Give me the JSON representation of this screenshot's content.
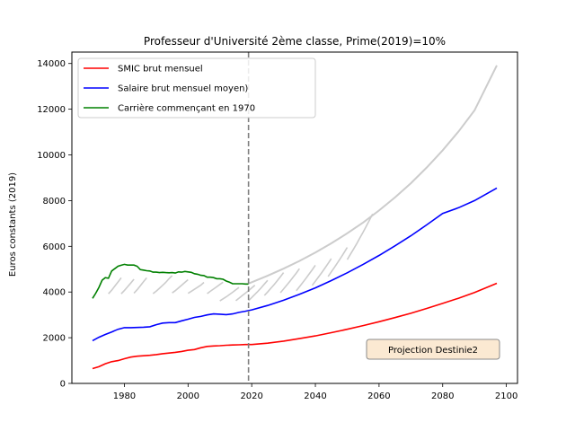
{
  "chart_data": {
    "type": "line",
    "title": "Professeur d'Université 2ème classe, Prime(2019)=10%",
    "xlabel": "",
    "ylabel": "Euros constants (2019)",
    "xlim": [
      1963.5,
      2103.5
    ],
    "ylim": [
      0,
      14500
    ],
    "xticks": [
      1980,
      2000,
      2020,
      2040,
      2060,
      2080,
      2100
    ],
    "yticks": [
      0,
      2000,
      4000,
      6000,
      8000,
      10000,
      12000,
      14000
    ],
    "vline": {
      "x": 2019,
      "color": "#808080",
      "style": "dashed"
    },
    "annotation": "Projection Destinie2",
    "legend_position": "top-left",
    "colors": {
      "smic": "#ff0000",
      "salaire": "#0000ff",
      "carriere": "#008000",
      "projection": "#cccccc"
    },
    "series": [
      {
        "name": "SMIC brut mensuel",
        "color": "#ff0000",
        "points": [
          [
            1970,
            650
          ],
          [
            1972,
            730
          ],
          [
            1974,
            860
          ],
          [
            1976,
            950
          ],
          [
            1978,
            1000
          ],
          [
            1980,
            1080
          ],
          [
            1982,
            1150
          ],
          [
            1984,
            1190
          ],
          [
            1986,
            1210
          ],
          [
            1988,
            1230
          ],
          [
            1990,
            1260
          ],
          [
            1992,
            1300
          ],
          [
            1994,
            1330
          ],
          [
            1996,
            1360
          ],
          [
            1998,
            1400
          ],
          [
            2000,
            1450
          ],
          [
            2002,
            1480
          ],
          [
            2004,
            1560
          ],
          [
            2006,
            1620
          ],
          [
            2008,
            1640
          ],
          [
            2010,
            1650
          ],
          [
            2012,
            1670
          ],
          [
            2014,
            1680
          ],
          [
            2016,
            1690
          ],
          [
            2018,
            1700
          ],
          [
            2020,
            1700
          ],
          [
            2025,
            1760
          ],
          [
            2030,
            1850
          ],
          [
            2035,
            1960
          ],
          [
            2040,
            2080
          ],
          [
            2045,
            2220
          ],
          [
            2050,
            2370
          ],
          [
            2055,
            2530
          ],
          [
            2060,
            2700
          ],
          [
            2065,
            2880
          ],
          [
            2070,
            3070
          ],
          [
            2075,
            3280
          ],
          [
            2080,
            3500
          ],
          [
            2085,
            3730
          ],
          [
            2090,
            3980
          ],
          [
            2097,
            4380
          ]
        ]
      },
      {
        "name": "Salaire brut mensuel moyen)",
        "color": "#0000ff",
        "points": [
          [
            1970,
            1870
          ],
          [
            1972,
            2020
          ],
          [
            1974,
            2140
          ],
          [
            1976,
            2250
          ],
          [
            1978,
            2370
          ],
          [
            1980,
            2440
          ],
          [
            1982,
            2440
          ],
          [
            1984,
            2450
          ],
          [
            1986,
            2460
          ],
          [
            1988,
            2480
          ],
          [
            1990,
            2570
          ],
          [
            1992,
            2640
          ],
          [
            1994,
            2660
          ],
          [
            1996,
            2660
          ],
          [
            1998,
            2740
          ],
          [
            2000,
            2810
          ],
          [
            2002,
            2890
          ],
          [
            2004,
            2930
          ],
          [
            2006,
            3000
          ],
          [
            2008,
            3040
          ],
          [
            2010,
            3030
          ],
          [
            2012,
            3010
          ],
          [
            2014,
            3040
          ],
          [
            2016,
            3110
          ],
          [
            2018,
            3160
          ],
          [
            2020,
            3220
          ],
          [
            2025,
            3410
          ],
          [
            2030,
            3640
          ],
          [
            2035,
            3900
          ],
          [
            2040,
            4180
          ],
          [
            2045,
            4500
          ],
          [
            2050,
            4840
          ],
          [
            2055,
            5210
          ],
          [
            2060,
            5600
          ],
          [
            2065,
            6020
          ],
          [
            2070,
            6460
          ],
          [
            2075,
            6940
          ],
          [
            2080,
            7440
          ],
          [
            2085,
            7690
          ],
          [
            2090,
            8000
          ],
          [
            2097,
            8550
          ]
        ]
      },
      {
        "name": "Carrière commençant en 1970",
        "color": "#008000",
        "points": [
          [
            1970,
            3720
          ],
          [
            1971,
            3950
          ],
          [
            1972,
            4200
          ],
          [
            1973,
            4520
          ],
          [
            1974,
            4630
          ],
          [
            1975,
            4600
          ],
          [
            1976,
            4920
          ],
          [
            1977,
            5020
          ],
          [
            1978,
            5130
          ],
          [
            1979,
            5170
          ],
          [
            1980,
            5210
          ],
          [
            1981,
            5180
          ],
          [
            1982,
            5180
          ],
          [
            1983,
            5180
          ],
          [
            1984,
            5130
          ],
          [
            1985,
            4980
          ],
          [
            1986,
            4960
          ],
          [
            1987,
            4930
          ],
          [
            1988,
            4920
          ],
          [
            1989,
            4870
          ],
          [
            1990,
            4870
          ],
          [
            1991,
            4850
          ],
          [
            1992,
            4860
          ],
          [
            1993,
            4850
          ],
          [
            1994,
            4840
          ],
          [
            1995,
            4850
          ],
          [
            1996,
            4830
          ],
          [
            1997,
            4880
          ],
          [
            1998,
            4870
          ],
          [
            1999,
            4900
          ],
          [
            2000,
            4880
          ],
          [
            2001,
            4860
          ],
          [
            2002,
            4800
          ],
          [
            2003,
            4780
          ],
          [
            2004,
            4730
          ],
          [
            2005,
            4720
          ],
          [
            2006,
            4650
          ],
          [
            2007,
            4650
          ],
          [
            2008,
            4630
          ],
          [
            2009,
            4580
          ],
          [
            2010,
            4580
          ],
          [
            2011,
            4560
          ],
          [
            2012,
            4480
          ],
          [
            2013,
            4430
          ],
          [
            2014,
            4360
          ],
          [
            2015,
            4360
          ],
          [
            2016,
            4360
          ],
          [
            2017,
            4360
          ],
          [
            2018,
            4350
          ],
          [
            2019,
            4350
          ]
        ]
      }
    ],
    "projection_envelope": [
      [
        2019,
        4370
      ],
      [
        2025,
        4710
      ],
      [
        2030,
        5020
      ],
      [
        2035,
        5360
      ],
      [
        2040,
        5730
      ],
      [
        2045,
        6130
      ],
      [
        2050,
        6570
      ],
      [
        2055,
        7040
      ],
      [
        2060,
        7570
      ],
      [
        2065,
        8140
      ],
      [
        2070,
        8760
      ],
      [
        2075,
        9450
      ],
      [
        2080,
        10200
      ],
      [
        2085,
        11030
      ],
      [
        2090,
        11950
      ],
      [
        2097,
        13920
      ]
    ],
    "projection_careers": [
      [
        [
          1975,
          3920
        ],
        [
          1976,
          4080
        ],
        [
          1977,
          4260
        ],
        [
          1978,
          4440
        ],
        [
          1979,
          4620
        ]
      ],
      [
        [
          1979,
          3920
        ],
        [
          1980,
          4070
        ],
        [
          1981,
          4230
        ],
        [
          1982,
          4390
        ],
        [
          1983,
          4560
        ]
      ],
      [
        [
          1983,
          3950
        ],
        [
          1984,
          4100
        ],
        [
          1985,
          4270
        ],
        [
          1986,
          4450
        ],
        [
          1987,
          4620
        ]
      ],
      [
        [
          1989,
          3930
        ],
        [
          1990,
          4040
        ],
        [
          1991,
          4160
        ],
        [
          1992,
          4290
        ],
        [
          1993,
          4420
        ],
        [
          1994,
          4580
        ],
        [
          1995,
          4720
        ]
      ],
      [
        [
          1995,
          3960
        ],
        [
          1996,
          4060
        ],
        [
          1997,
          4180
        ],
        [
          1998,
          4300
        ],
        [
          1999,
          4420
        ],
        [
          2000,
          4540
        ]
      ],
      [
        [
          2000,
          3940
        ],
        [
          2001,
          4030
        ],
        [
          2002,
          4120
        ],
        [
          2003,
          4210
        ],
        [
          2004,
          4300
        ],
        [
          2005,
          4420
        ]
      ],
      [
        [
          2006,
          3930
        ],
        [
          2007,
          4030
        ],
        [
          2008,
          4130
        ],
        [
          2009,
          4230
        ],
        [
          2010,
          4330
        ],
        [
          2011,
          4430
        ]
      ],
      [
        [
          2010,
          3610
        ],
        [
          2011,
          3700
        ],
        [
          2012,
          3790
        ],
        [
          2013,
          3890
        ],
        [
          2014,
          3990
        ],
        [
          2015,
          4100
        ],
        [
          2016,
          4200
        ]
      ],
      [
        [
          2015,
          3620
        ],
        [
          2016,
          3730
        ],
        [
          2017,
          3840
        ],
        [
          2018,
          3950
        ],
        [
          2019,
          4060
        ],
        [
          2020,
          4180
        ],
        [
          2021,
          4300
        ]
      ],
      [
        [
          2019,
          3620
        ],
        [
          2020,
          3760
        ],
        [
          2021,
          3900
        ],
        [
          2022,
          4040
        ],
        [
          2023,
          4190
        ],
        [
          2024,
          4350
        ],
        [
          2025,
          4510
        ]
      ],
      [
        [
          2024,
          3850
        ],
        [
          2025,
          4000
        ],
        [
          2026,
          4160
        ],
        [
          2027,
          4320
        ],
        [
          2028,
          4490
        ],
        [
          2029,
          4670
        ],
        [
          2030,
          4850
        ]
      ],
      [
        [
          2029,
          3970
        ],
        [
          2030,
          4130
        ],
        [
          2031,
          4300
        ],
        [
          2032,
          4470
        ],
        [
          2033,
          4650
        ],
        [
          2034,
          4830
        ],
        [
          2035,
          5020
        ]
      ],
      [
        [
          2034,
          4060
        ],
        [
          2035,
          4230
        ],
        [
          2036,
          4410
        ],
        [
          2037,
          4590
        ],
        [
          2038,
          4780
        ],
        [
          2039,
          4970
        ],
        [
          2040,
          5170
        ]
      ],
      [
        [
          2039,
          4290
        ],
        [
          2040,
          4470
        ],
        [
          2041,
          4660
        ],
        [
          2042,
          4850
        ],
        [
          2043,
          5050
        ],
        [
          2044,
          5250
        ],
        [
          2045,
          5460
        ]
      ],
      [
        [
          2044,
          4680
        ],
        [
          2045,
          4880
        ],
        [
          2046,
          5080
        ],
        [
          2047,
          5290
        ],
        [
          2048,
          5500
        ],
        [
          2049,
          5720
        ],
        [
          2050,
          5950
        ]
      ],
      [
        [
          2050,
          5420
        ],
        [
          2051,
          5650
        ],
        [
          2052,
          5880
        ],
        [
          2053,
          6120
        ],
        [
          2054,
          6370
        ],
        [
          2055,
          6620
        ],
        [
          2056,
          6880
        ],
        [
          2057,
          7150
        ],
        [
          2058,
          7420
        ]
      ]
    ]
  }
}
